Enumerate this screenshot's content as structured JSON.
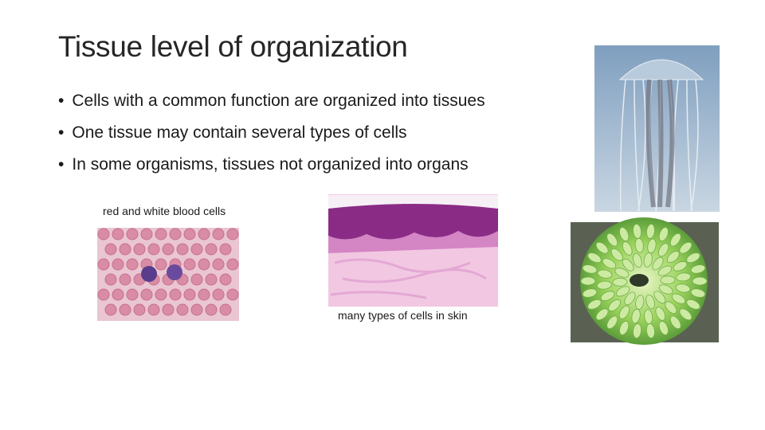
{
  "slide": {
    "title": "Tissue level of organization",
    "bullets": [
      "Cells with a common function are organized into tissues",
      "One tissue may contain several types of cells",
      "In some organisms, tissues not organized into organs"
    ],
    "captions": [
      "red and white blood cells",
      "many types of cells in skin"
    ]
  }
}
